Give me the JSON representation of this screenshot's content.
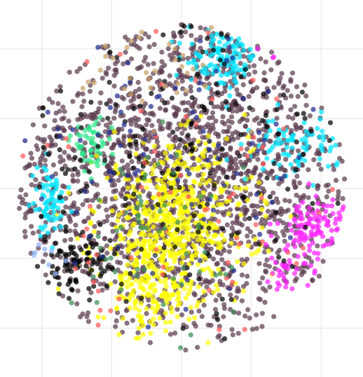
{
  "chart_data": {
    "type": "scatter",
    "title": "",
    "xlabel": "",
    "ylabel": "",
    "grid": true,
    "legend": "none",
    "xlim": [
      -52,
      52
    ],
    "ylim": [
      -54,
      54
    ],
    "x_gridlines": [
      -40,
      -20,
      0,
      20,
      40
    ],
    "y_gridlines": [
      -40,
      -20,
      0,
      20,
      40
    ],
    "clusters": [
      {
        "name": "",
        "color": "#5c3b4f",
        "cx": 0,
        "cy": 5,
        "sx": 28,
        "sy": 26,
        "n": 1800
      },
      {
        "name": "",
        "color": "#ffff00",
        "cx": -2,
        "cy": -10,
        "sx": 11,
        "sy": 11,
        "n": 560
      },
      {
        "name": "",
        "color": "#ffff00",
        "cx": -10,
        "cy": -30,
        "sx": 6,
        "sy": 7,
        "n": 140
      },
      {
        "name": "",
        "color": "#00e5ff",
        "cx": 12,
        "cy": 37,
        "sx": 5,
        "sy": 4,
        "n": 110
      },
      {
        "name": "",
        "color": "#00e5ff",
        "cx": -38,
        "cy": -4,
        "sx": 2.5,
        "sy": 5,
        "n": 70
      },
      {
        "name": "",
        "color": "#00e5ff",
        "cx": 33,
        "cy": 12,
        "sx": 6,
        "sy": 4,
        "n": 80
      },
      {
        "name": "",
        "color": "#ff22ff",
        "cx": 38,
        "cy": -12,
        "sx": 5,
        "sy": 5,
        "n": 110
      },
      {
        "name": "",
        "color": "#ff22ff",
        "cx": 29,
        "cy": 43,
        "sx": 2,
        "sy": 2,
        "n": 20
      },
      {
        "name": "",
        "color": "#ff22ff",
        "cx": 30,
        "cy": -23,
        "sx": 2,
        "sy": 3,
        "n": 25
      },
      {
        "name": "",
        "color": "#2ee88a",
        "cx": -26,
        "cy": 12,
        "sx": 3,
        "sy": 4,
        "n": 50
      },
      {
        "name": "",
        "color": "#000000",
        "cx": -30,
        "cy": -22,
        "sx": 5,
        "sy": 4,
        "n": 90
      },
      {
        "name": "",
        "color": "#000000",
        "cx": 0,
        "cy": 10,
        "sx": 28,
        "sy": 26,
        "n": 180
      },
      {
        "name": "",
        "color": "#ff5a5a",
        "cx": 0,
        "cy": 0,
        "sx": 30,
        "sy": 28,
        "n": 70
      },
      {
        "name": "",
        "color": "#1e2b8c",
        "cx": -5,
        "cy": 15,
        "sx": 28,
        "sy": 25,
        "n": 90
      },
      {
        "name": "",
        "color": "#3c8c55",
        "cx": -8,
        "cy": -12,
        "sx": 12,
        "sy": 12,
        "n": 60
      },
      {
        "name": "",
        "color": "#c9a36b",
        "cx": -10,
        "cy": 38,
        "sx": 15,
        "sy": 8,
        "n": 35
      },
      {
        "name": "",
        "color": "#8fb3ff",
        "cx": -38,
        "cy": -20,
        "sx": 3,
        "sy": 3,
        "n": 8
      }
    ]
  }
}
